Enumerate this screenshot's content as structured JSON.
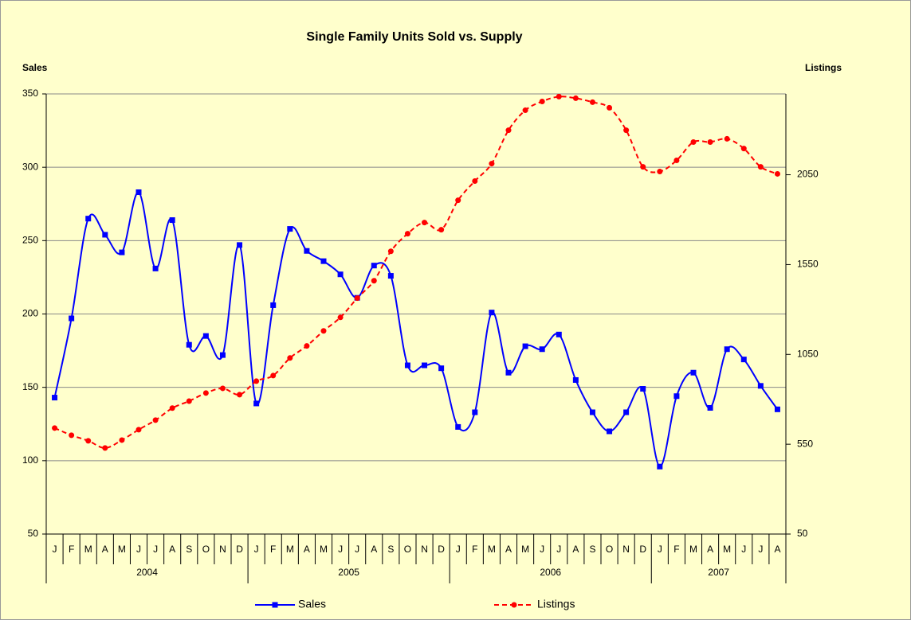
{
  "chart_data": {
    "type": "line",
    "title": "Single Family Units Sold vs. Supply",
    "y_label": "Sales",
    "y2_label": "Listings",
    "groups": [
      {
        "label": "2004",
        "categories": [
          "J",
          "F",
          "M",
          "A",
          "M",
          "J",
          "J",
          "A",
          "S",
          "O",
          "N",
          "D"
        ]
      },
      {
        "label": "2005",
        "categories": [
          "J",
          "F",
          "M",
          "A",
          "M",
          "J",
          "J",
          "A",
          "S",
          "O",
          "N",
          "D"
        ]
      },
      {
        "label": "2006",
        "categories": [
          "J",
          "F",
          "M",
          "A",
          "M",
          "J",
          "J",
          "A",
          "S",
          "O",
          "N",
          "D"
        ]
      },
      {
        "label": "2007",
        "categories": [
          "J",
          "F",
          "M",
          "A",
          "M",
          "J",
          "J",
          "A"
        ]
      }
    ],
    "ylim": [
      50,
      350
    ],
    "yticks": [
      50,
      100,
      150,
      200,
      250,
      300,
      350
    ],
    "y2lim": [
      50,
      2500
    ],
    "y2ticks": [
      50,
      550,
      1050,
      1550,
      2050
    ],
    "grid": true,
    "legend": "bottom",
    "series": [
      {
        "name": "Sales",
        "color": "#0000ff",
        "marker": "square",
        "dash": "solid",
        "values": [
          143,
          197,
          265,
          254,
          242,
          283,
          231,
          264,
          179,
          185,
          172,
          247,
          139,
          206,
          258,
          243,
          236,
          227,
          211,
          233,
          226,
          165,
          165,
          163,
          123,
          133,
          201,
          160,
          178,
          176,
          186,
          155,
          133,
          120,
          133,
          149,
          96,
          144,
          160,
          136,
          176,
          169,
          151,
          135
        ]
      },
      {
        "name": "Listings",
        "color": "#ff0000",
        "marker": "circle",
        "dash": "dashed",
        "axis": "y2",
        "values": [
          640,
          600,
          569,
          529,
          573,
          631,
          684,
          751,
          790,
          835,
          861,
          826,
          901,
          932,
          1030,
          1097,
          1181,
          1256,
          1363,
          1460,
          1624,
          1722,
          1784,
          1744,
          1908,
          2015,
          2112,
          2298,
          2409,
          2458,
          2485,
          2476,
          2454,
          2423,
          2298,
          2094,
          2068,
          2130,
          2232,
          2232,
          2250,
          2196,
          2094,
          2055
        ]
      }
    ]
  }
}
